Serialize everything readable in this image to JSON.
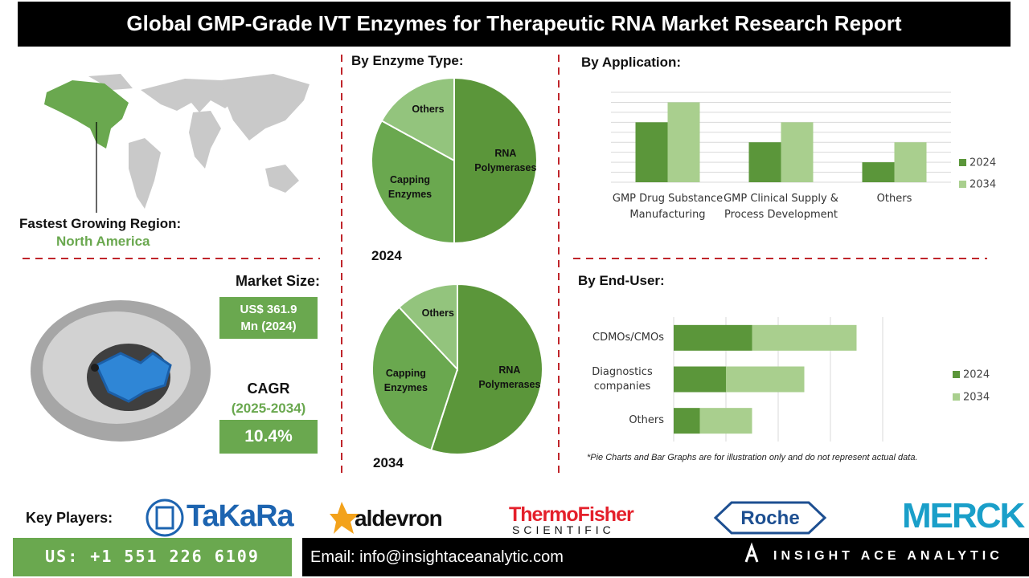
{
  "header": {
    "title": "Global GMP-Grade IVT Enzymes for Therapeutic RNA Market Research Report"
  },
  "region": {
    "label": "Fastest Growing Region:",
    "value": "North America"
  },
  "market": {
    "size_label": "Market Size:",
    "size": "US$ 361.9 Mn (2024)",
    "cagr_label": "CAGR",
    "cagr_period": "(2025-2034)",
    "cagr": "10.4%"
  },
  "chart_data": [
    {
      "type": "pie",
      "title": "By Enzyme Type:",
      "subtitle": "2024",
      "categories": [
        "RNA Polymerases",
        "Capping Enzymes",
        "Others"
      ],
      "values": [
        50,
        33,
        17
      ],
      "colors": [
        "#5b963a",
        "#6aa84f",
        "#93c47d"
      ]
    },
    {
      "type": "pie",
      "subtitle": "2034",
      "categories": [
        "RNA Polymerases",
        "Capping Enzymes",
        "Others"
      ],
      "values": [
        55,
        33,
        12
      ],
      "colors": [
        "#5b963a",
        "#6aa84f",
        "#93c47d"
      ]
    },
    {
      "type": "bar",
      "title": "By Application:",
      "categories": [
        "GMP Drug Substance Manufacturing",
        "GMP Clinical Supply & Process Development",
        "Others"
      ],
      "series": [
        {
          "name": "2024",
          "color": "#5b963a",
          "values": [
            6,
            4,
            2
          ]
        },
        {
          "name": "2034",
          "color": "#a9cf8e",
          "values": [
            8,
            6,
            4
          ]
        }
      ],
      "ylim": [
        0,
        9
      ],
      "yticks": [
        0,
        1,
        2,
        3,
        4,
        5,
        6,
        7,
        8,
        9
      ],
      "grid": true,
      "legend": "right"
    },
    {
      "type": "stacked-barh",
      "title": "By End-User:",
      "categories": [
        "CDMOs/CMOs",
        "Diagnostics companies",
        "Others"
      ],
      "series": [
        {
          "name": "2024",
          "color": "#5b963a",
          "values": [
            1.5,
            1,
            0.5
          ]
        },
        {
          "name": "2034",
          "color": "#a9cf8e",
          "values": [
            2,
            1.5,
            1
          ]
        }
      ],
      "xlim": [
        0,
        4
      ],
      "xticks": [
        0,
        1,
        2,
        3,
        4
      ],
      "grid": true,
      "legend": "right"
    }
  ],
  "footnote": "*Pie Charts and Bar Graphs are for illustration only and do not represent actual data.",
  "key_players": {
    "label": "Key Players:",
    "companies": [
      {
        "name": "TaKaRa"
      },
      {
        "name": "aldevron"
      },
      {
        "name": "ThermoFisher",
        "sub": "SCIENTIFIC"
      },
      {
        "name": "Roche"
      },
      {
        "name": "MERCK"
      }
    ]
  },
  "footer": {
    "phone": "US: +1 551 226 6109",
    "email": "Email: info@insightaceanalytic.com",
    "brand": "INSIGHT ACE ANALYTIC"
  }
}
